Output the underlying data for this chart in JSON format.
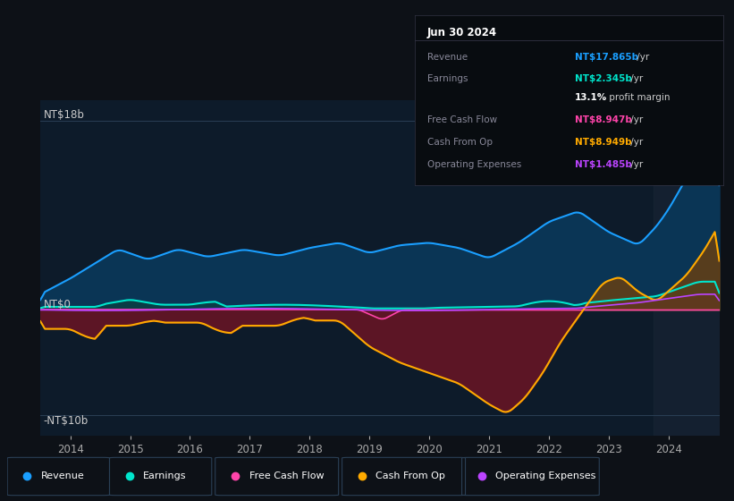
{
  "bg_color": "#0d1117",
  "plot_bg_color": "#0d1b2a",
  "y_label_top": "NT$18b",
  "y_label_zero": "NT$0",
  "y_label_bottom": "-NT$10b",
  "x_ticks": [
    2014,
    2015,
    2016,
    2017,
    2018,
    2019,
    2020,
    2021,
    2022,
    2023,
    2024
  ],
  "ylim": [
    -12,
    20
  ],
  "xlim": [
    2013.5,
    2024.85
  ],
  "colors": {
    "revenue": "#1a9fff",
    "earnings": "#00e5cc",
    "free_cash_flow": "#ff44aa",
    "cash_from_op": "#ffaa00",
    "operating_expenses": "#bb44ff",
    "revenue_fill": "#0a3555",
    "cash_neg_fill": "#5c1525",
    "cash_pos_fill": "#6b4010",
    "earnings_fill": "#0a4040",
    "op_exp_fill": "#3a1a5a",
    "highlight_bg": "#1a2535"
  },
  "legend_items": [
    {
      "label": "Revenue",
      "color": "#1a9fff"
    },
    {
      "label": "Earnings",
      "color": "#00e5cc"
    },
    {
      "label": "Free Cash Flow",
      "color": "#ff44aa"
    },
    {
      "label": "Cash From Op",
      "color": "#ffaa00"
    },
    {
      "label": "Operating Expenses",
      "color": "#bb44ff"
    }
  ],
  "tooltip": {
    "date": "Jun 30 2024",
    "revenue_label": "Revenue",
    "revenue_val": "NT$17.865b",
    "revenue_suffix": " /yr",
    "earnings_label": "Earnings",
    "earnings_val": "NT$2.345b",
    "earnings_suffix": " /yr",
    "margin_val": "13.1%",
    "margin_text": " profit margin",
    "fcf_label": "Free Cash Flow",
    "fcf_val": "NT$8.947b",
    "fcf_suffix": " /yr",
    "cashop_label": "Cash From Op",
    "cashop_val": "NT$8.949b",
    "cashop_suffix": " /yr",
    "opex_label": "Operating Expenses",
    "opex_val": "NT$1.485b",
    "opex_suffix": " /yr"
  }
}
